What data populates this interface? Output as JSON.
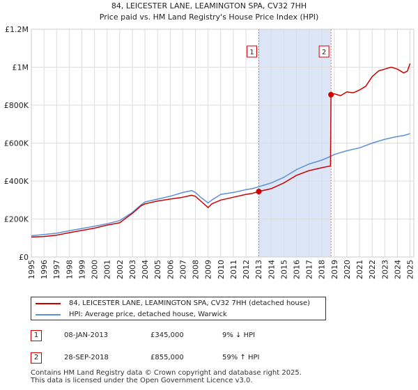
{
  "chart_data": {
    "type": "line",
    "title": "84, LEICESTER LANE, LEAMINGTON SPA, CV32 7HH",
    "subtitle": "Price paid vs. HM Land Registry's House Price Index (HPI)",
    "xlabel": "",
    "ylabel": "",
    "xlim": [
      1995,
      2025.3
    ],
    "ylim": [
      0,
      1200000
    ],
    "y_ticks": [
      0,
      200000,
      400000,
      600000,
      800000,
      1000000,
      1200000
    ],
    "y_tick_labels": [
      "£0",
      "£200K",
      "£400K",
      "£600K",
      "£800K",
      "£1M",
      "£1.2M"
    ],
    "x_ticks": [
      1995,
      1996,
      1997,
      1998,
      1999,
      2000,
      2001,
      2002,
      2003,
      2004,
      2005,
      2006,
      2007,
      2008,
      2009,
      2010,
      2011,
      2012,
      2013,
      2014,
      2015,
      2016,
      2017,
      2018,
      2019,
      2020,
      2021,
      2022,
      2023,
      2024,
      2025
    ],
    "grid": true,
    "shaded_region": {
      "x_start": 2013.02,
      "x_end": 2018.74
    },
    "colors": {
      "property": "#cc0000",
      "hpi": "#5b8fd6",
      "shade": "#dde6f7",
      "marker_line": "#e07070"
    },
    "series": [
      {
        "name": "84, LEICESTER LANE, LEAMINGTON SPA, CV32 7HH (detached house)",
        "color": "#cc0000",
        "x": [
          1995,
          1996,
          1997,
          1998,
          1999,
          2000,
          2001,
          2002,
          2003,
          2003.7,
          2004,
          2005,
          2006,
          2007,
          2007.7,
          2008,
          2008.5,
          2009,
          2009.3,
          2010,
          2011,
          2012,
          2012.5,
          2013.02,
          2014,
          2015,
          2016,
          2017,
          2018,
          2018.7,
          2018.74,
          2019,
          2019.5,
          2020,
          2020.5,
          2021,
          2021.5,
          2022,
          2022.5,
          2023,
          2023.5,
          2024,
          2024.5,
          2024.8,
          2025
        ],
        "y": [
          105000,
          108000,
          115000,
          128000,
          140000,
          152000,
          168000,
          180000,
          230000,
          270000,
          280000,
          295000,
          305000,
          315000,
          325000,
          320000,
          290000,
          260000,
          280000,
          300000,
          315000,
          330000,
          335000,
          345000,
          360000,
          390000,
          430000,
          455000,
          470000,
          480000,
          855000,
          860000,
          850000,
          870000,
          865000,
          880000,
          900000,
          950000,
          980000,
          990000,
          1000000,
          990000,
          970000,
          980000,
          1020000
        ]
      },
      {
        "name": "HPI: Average price, detached house, Warwick",
        "color": "#5b8fd6",
        "x": [
          1995,
          1996,
          1997,
          1998,
          1999,
          2000,
          2001,
          2002,
          2003,
          2003.7,
          2004,
          2005,
          2006,
          2007,
          2007.7,
          2008,
          2008.5,
          2009,
          2009.3,
          2010,
          2011,
          2012,
          2012.5,
          2013,
          2014,
          2015,
          2016,
          2017,
          2018,
          2018.7,
          2019,
          2020,
          2021,
          2022,
          2023,
          2024,
          2024.5,
          2025
        ],
        "y": [
          112000,
          118000,
          125000,
          138000,
          150000,
          162000,
          175000,
          192000,
          235000,
          275000,
          290000,
          305000,
          320000,
          340000,
          350000,
          340000,
          310000,
          285000,
          300000,
          330000,
          340000,
          355000,
          360000,
          370000,
          390000,
          420000,
          460000,
          490000,
          510000,
          530000,
          540000,
          560000,
          575000,
          600000,
          620000,
          635000,
          640000,
          650000
        ]
      }
    ],
    "transactions": [
      {
        "label": "1",
        "x": 2013.02,
        "y": 345000
      },
      {
        "label": "2",
        "x": 2018.74,
        "y": 855000
      }
    ]
  },
  "legend": {
    "property_label": "84, LEICESTER LANE, LEAMINGTON SPA, CV32 7HH (detached house)",
    "hpi_label": "HPI: Average price, detached house, Warwick"
  },
  "table": [
    {
      "marker": "1",
      "date": "08-JAN-2013",
      "price": "£345,000",
      "hpi": "9% ↓ HPI"
    },
    {
      "marker": "2",
      "date": "28-SEP-2018",
      "price": "£855,000",
      "hpi": "59% ↑ HPI"
    }
  ],
  "footer": {
    "line1": "Contains HM Land Registry data © Crown copyright and database right 2025.",
    "line2": "This data is licensed under the Open Government Licence v3.0."
  }
}
